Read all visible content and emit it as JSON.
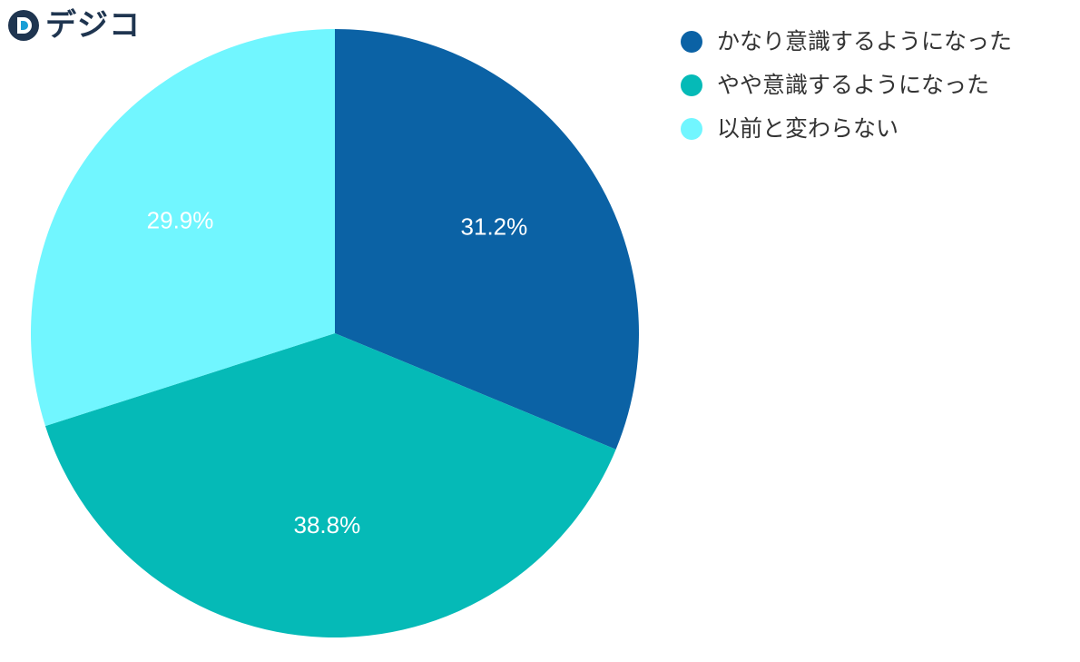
{
  "logo": {
    "text": "デジコ",
    "icon": "d-logo-icon",
    "color": "#1f3550",
    "accent": "#1a9fd6"
  },
  "chart_data": {
    "type": "pie",
    "title": "",
    "start_angle_deg": 0,
    "direction": "clockwise",
    "legend_position": "top-right",
    "slices": [
      {
        "label": "かなり意識するようになった",
        "value": 31.2,
        "display": "31.2%",
        "color": "#0b62a5"
      },
      {
        "label": "やや意識するようになった",
        "value": 38.8,
        "display": "38.8%",
        "color": "#05bab7"
      },
      {
        "label": "以前と変わらない",
        "value": 29.9,
        "display": "29.9%",
        "color": "#71f6ff"
      }
    ]
  }
}
